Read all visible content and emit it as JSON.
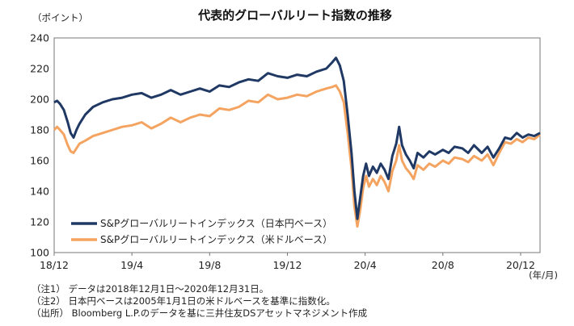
{
  "chart_data": {
    "type": "line",
    "title": "代表的グローバルリート指数の推移",
    "ylabel": "（ポイント）",
    "xunit": "(年/月)",
    "ylim": [
      100,
      240
    ],
    "yticks": [
      100,
      120,
      140,
      160,
      180,
      200,
      220,
      240
    ],
    "xlim": [
      0,
      25
    ],
    "xticks": [
      {
        "label": "18/12",
        "x": 0
      },
      {
        "label": "19/4",
        "x": 4
      },
      {
        "label": "19/8",
        "x": 8
      },
      {
        "label": "19/12",
        "x": 12
      },
      {
        "label": "20/4",
        "x": 16
      },
      {
        "label": "20/8",
        "x": 20
      },
      {
        "label": "20/12",
        "x": 24
      }
    ],
    "legend_position": "lower-left",
    "series": [
      {
        "name": "S&Pグローバルリートインデックス（日本円ベース）",
        "color": "#1f3864",
        "points": [
          [
            0.0,
            198
          ],
          [
            0.15,
            199
          ],
          [
            0.3,
            197
          ],
          [
            0.5,
            193
          ],
          [
            0.7,
            185
          ],
          [
            0.85,
            178
          ],
          [
            1.0,
            175
          ],
          [
            1.15,
            180
          ],
          [
            1.3,
            184
          ],
          [
            1.6,
            190
          ],
          [
            2.0,
            195
          ],
          [
            2.5,
            198
          ],
          [
            3.0,
            200
          ],
          [
            3.5,
            201
          ],
          [
            4.0,
            203
          ],
          [
            4.5,
            204
          ],
          [
            5.0,
            201
          ],
          [
            5.5,
            203
          ],
          [
            6.0,
            206
          ],
          [
            6.5,
            203
          ],
          [
            7.0,
            205
          ],
          [
            7.5,
            207
          ],
          [
            8.0,
            205
          ],
          [
            8.5,
            209
          ],
          [
            9.0,
            208
          ],
          [
            9.5,
            211
          ],
          [
            10.0,
            213
          ],
          [
            10.5,
            212
          ],
          [
            11.0,
            217
          ],
          [
            11.5,
            215
          ],
          [
            12.0,
            214
          ],
          [
            12.5,
            216
          ],
          [
            13.0,
            215
          ],
          [
            13.5,
            218
          ],
          [
            14.0,
            220
          ],
          [
            14.3,
            224
          ],
          [
            14.5,
            227
          ],
          [
            14.7,
            222
          ],
          [
            14.9,
            212
          ],
          [
            15.1,
            190
          ],
          [
            15.3,
            165
          ],
          [
            15.45,
            140
          ],
          [
            15.6,
            122
          ],
          [
            15.75,
            136
          ],
          [
            15.9,
            150
          ],
          [
            16.05,
            158
          ],
          [
            16.2,
            150
          ],
          [
            16.4,
            156
          ],
          [
            16.6,
            152
          ],
          [
            16.8,
            158
          ],
          [
            17.0,
            154
          ],
          [
            17.2,
            148
          ],
          [
            17.4,
            163
          ],
          [
            17.6,
            171
          ],
          [
            17.75,
            182
          ],
          [
            17.9,
            170
          ],
          [
            18.1,
            164
          ],
          [
            18.3,
            160
          ],
          [
            18.5,
            155
          ],
          [
            18.7,
            165
          ],
          [
            19.0,
            162
          ],
          [
            19.3,
            166
          ],
          [
            19.6,
            164
          ],
          [
            20.0,
            167
          ],
          [
            20.3,
            165
          ],
          [
            20.6,
            169
          ],
          [
            21.0,
            168
          ],
          [
            21.3,
            165
          ],
          [
            21.6,
            170
          ],
          [
            22.0,
            165
          ],
          [
            22.3,
            169
          ],
          [
            22.6,
            162
          ],
          [
            22.9,
            168
          ],
          [
            23.2,
            175
          ],
          [
            23.5,
            174
          ],
          [
            23.8,
            178
          ],
          [
            24.1,
            175
          ],
          [
            24.4,
            177
          ],
          [
            24.7,
            176
          ],
          [
            25.0,
            178
          ]
        ]
      },
      {
        "name": "S&Pグローバルリートインデックス（米ドルベース）",
        "color": "#f4a460",
        "points": [
          [
            0.0,
            180
          ],
          [
            0.15,
            182
          ],
          [
            0.3,
            180
          ],
          [
            0.5,
            177
          ],
          [
            0.7,
            170
          ],
          [
            0.85,
            166
          ],
          [
            1.0,
            165
          ],
          [
            1.15,
            168
          ],
          [
            1.3,
            171
          ],
          [
            1.6,
            173
          ],
          [
            2.0,
            176
          ],
          [
            2.5,
            178
          ],
          [
            3.0,
            180
          ],
          [
            3.5,
            182
          ],
          [
            4.0,
            183
          ],
          [
            4.5,
            185
          ],
          [
            5.0,
            181
          ],
          [
            5.5,
            184
          ],
          [
            6.0,
            188
          ],
          [
            6.5,
            185
          ],
          [
            7.0,
            188
          ],
          [
            7.5,
            190
          ],
          [
            8.0,
            189
          ],
          [
            8.5,
            194
          ],
          [
            9.0,
            193
          ],
          [
            9.5,
            195
          ],
          [
            10.0,
            199
          ],
          [
            10.5,
            198
          ],
          [
            11.0,
            203
          ],
          [
            11.5,
            200
          ],
          [
            12.0,
            201
          ],
          [
            12.5,
            203
          ],
          [
            13.0,
            202
          ],
          [
            13.5,
            205
          ],
          [
            14.0,
            207
          ],
          [
            14.3,
            208
          ],
          [
            14.5,
            209
          ],
          [
            14.7,
            205
          ],
          [
            14.9,
            198
          ],
          [
            15.1,
            178
          ],
          [
            15.3,
            155
          ],
          [
            15.45,
            130
          ],
          [
            15.6,
            117
          ],
          [
            15.75,
            128
          ],
          [
            15.9,
            142
          ],
          [
            16.05,
            150
          ],
          [
            16.2,
            143
          ],
          [
            16.4,
            148
          ],
          [
            16.6,
            144
          ],
          [
            16.8,
            150
          ],
          [
            17.0,
            146
          ],
          [
            17.2,
            140
          ],
          [
            17.4,
            153
          ],
          [
            17.6,
            160
          ],
          [
            17.75,
            170
          ],
          [
            17.9,
            160
          ],
          [
            18.1,
            155
          ],
          [
            18.3,
            152
          ],
          [
            18.5,
            148
          ],
          [
            18.7,
            157
          ],
          [
            19.0,
            154
          ],
          [
            19.3,
            158
          ],
          [
            19.6,
            156
          ],
          [
            20.0,
            160
          ],
          [
            20.3,
            158
          ],
          [
            20.6,
            162
          ],
          [
            21.0,
            161
          ],
          [
            21.3,
            159
          ],
          [
            21.6,
            163
          ],
          [
            22.0,
            160
          ],
          [
            22.3,
            164
          ],
          [
            22.6,
            157
          ],
          [
            22.9,
            165
          ],
          [
            23.2,
            172
          ],
          [
            23.5,
            171
          ],
          [
            23.8,
            174
          ],
          [
            24.1,
            172
          ],
          [
            24.4,
            175
          ],
          [
            24.7,
            174
          ],
          [
            25.0,
            177
          ]
        ]
      }
    ]
  },
  "notes": [
    "（注1） データは2018年12月1日～2020年12月31日。",
    "（注2） 日本円ベースは2005年1月1日の米ドルベースを基準に指数化。",
    "（出所） Bloomberg L.P.のデータを基に三井住友DSアセットマネジメント作成"
  ]
}
